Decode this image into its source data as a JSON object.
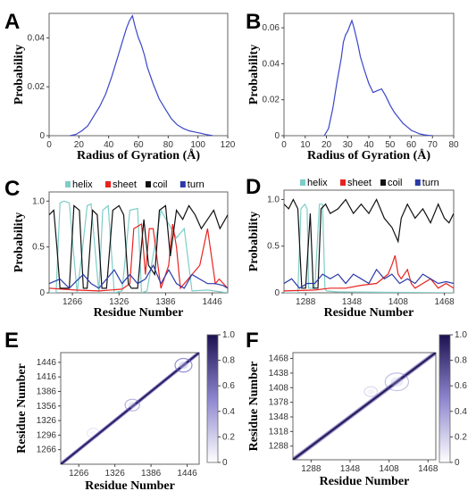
{
  "chart_data": [
    {
      "panel": "A",
      "type": "line",
      "xlabel": "Radius of Gyration (Å)",
      "ylabel": "Probability",
      "xlim": [
        0,
        120
      ],
      "ylim": [
        0,
        0.05
      ],
      "xticks": [
        "0",
        "20",
        "40",
        "60",
        "80",
        "100",
        "120"
      ],
      "yticks": [
        "0",
        "0.02",
        "0.04"
      ],
      "series": [
        {
          "color": "#3a45c8",
          "x": [
            14,
            18,
            22,
            26,
            30,
            34,
            38,
            42,
            46,
            50,
            52,
            54,
            56,
            58,
            60,
            62,
            64,
            66,
            70,
            74,
            78,
            82,
            86,
            90,
            94,
            98,
            102,
            106,
            110
          ],
          "y": [
            0,
            0.0005,
            0.002,
            0.004,
            0.008,
            0.012,
            0.017,
            0.024,
            0.032,
            0.04,
            0.044,
            0.047,
            0.049,
            0.044,
            0.04,
            0.037,
            0.033,
            0.028,
            0.021,
            0.015,
            0.011,
            0.007,
            0.0045,
            0.003,
            0.002,
            0.0015,
            0.001,
            0.0004,
            0
          ]
        }
      ]
    },
    {
      "panel": "B",
      "type": "line",
      "xlabel": "Radius of Gyration (Å)",
      "ylabel": "Probability",
      "xlim": [
        0,
        80
      ],
      "ylim": [
        0,
        0.068
      ],
      "xticks": [
        "0",
        "10",
        "20",
        "30",
        "40",
        "50",
        "60",
        "70",
        "80"
      ],
      "yticks": [
        "0",
        "0.02",
        "0.04",
        "0.06"
      ],
      "series": [
        {
          "color": "#3a45c8",
          "x": [
            19,
            21,
            23,
            25,
            27,
            28,
            29,
            30,
            31,
            32,
            33,
            34,
            35,
            36,
            38,
            40,
            42,
            44,
            46,
            48,
            50,
            52,
            54,
            56,
            58,
            60,
            62,
            64,
            66,
            68,
            70
          ],
          "y": [
            0,
            0.004,
            0.015,
            0.03,
            0.043,
            0.052,
            0.056,
            0.058,
            0.061,
            0.064,
            0.06,
            0.055,
            0.05,
            0.044,
            0.036,
            0.029,
            0.024,
            0.025,
            0.026,
            0.022,
            0.017,
            0.013,
            0.01,
            0.007,
            0.005,
            0.003,
            0.002,
            0.001,
            0.0005,
            0.0002,
            0
          ]
        }
      ]
    },
    {
      "panel": "C",
      "type": "line",
      "xlabel": "Residue Number",
      "ylabel": "Probability",
      "xlim": [
        1236,
        1466
      ],
      "ylim": [
        0,
        1.1
      ],
      "xticks": [
        "1266",
        "1326",
        "1386",
        "1446"
      ],
      "yticks": [
        "0",
        "0.5",
        "1.0"
      ],
      "legend": [
        "helix",
        "sheet",
        "coil",
        "turn"
      ],
      "series": [
        {
          "name": "helix",
          "color": "#7ecdc8",
          "x": [
            1236,
            1245,
            1250,
            1255,
            1262,
            1272,
            1278,
            1285,
            1290,
            1300,
            1305,
            1312,
            1320,
            1330,
            1340,
            1350,
            1355,
            1362,
            1380,
            1400,
            1410,
            1420,
            1440,
            1466
          ],
          "y": [
            0,
            0,
            0.98,
            1.0,
            0.98,
            0,
            0.4,
            0.95,
            0.97,
            0,
            0.9,
            0.95,
            0,
            0.02,
            0.9,
            0.92,
            0,
            0.02,
            0.9,
            0.6,
            0.7,
            0.02,
            0.03,
            0
          ]
        },
        {
          "name": "sheet",
          "color": "#e8231f",
          "x": [
            1236,
            1270,
            1300,
            1330,
            1340,
            1345,
            1355,
            1360,
            1365,
            1370,
            1380,
            1390,
            1395,
            1400,
            1405,
            1410,
            1420,
            1430,
            1440,
            1450,
            1455,
            1466
          ],
          "y": [
            0.05,
            0.03,
            0.02,
            0.04,
            0.1,
            0.7,
            0.75,
            0.2,
            0.7,
            0.7,
            0.05,
            0.3,
            0.75,
            0.5,
            0.05,
            0.1,
            0.2,
            0.3,
            0.7,
            0.1,
            0.15,
            0.05
          ]
        },
        {
          "name": "coil",
          "color": "#111111",
          "x": [
            1236,
            1242,
            1246,
            1250,
            1262,
            1268,
            1275,
            1280,
            1285,
            1292,
            1298,
            1304,
            1310,
            1318,
            1326,
            1332,
            1338,
            1342,
            1350,
            1358,
            1364,
            1372,
            1378,
            1386,
            1392,
            1400,
            1408,
            1416,
            1424,
            1432,
            1440,
            1448,
            1456,
            1466
          ],
          "y": [
            0.85,
            0.9,
            0.5,
            0.05,
            0.05,
            0.95,
            0.9,
            0.05,
            0.05,
            0.9,
            0.85,
            0.05,
            0.05,
            0.9,
            0.95,
            0.85,
            0.1,
            0.05,
            0.05,
            0.8,
            0.3,
            0.2,
            0.9,
            0.95,
            0.4,
            0.9,
            0.8,
            0.95,
            0.85,
            0.7,
            0.8,
            0.9,
            0.7,
            0.85
          ]
        },
        {
          "name": "turn",
          "color": "#2b3aa8",
          "x": [
            1236,
            1250,
            1262,
            1270,
            1280,
            1290,
            1300,
            1310,
            1320,
            1330,
            1340,
            1350,
            1360,
            1370,
            1380,
            1390,
            1400,
            1410,
            1420,
            1430,
            1440,
            1450,
            1460,
            1466
          ],
          "y": [
            0.1,
            0.15,
            0.05,
            0.12,
            0.2,
            0.1,
            0.05,
            0.15,
            0.25,
            0.1,
            0.2,
            0.1,
            0.15,
            0.3,
            0.1,
            0.25,
            0.1,
            0.05,
            0.2,
            0.15,
            0.1,
            0.1,
            0.08,
            0.05
          ]
        }
      ]
    },
    {
      "panel": "D",
      "type": "line",
      "xlabel": "Residue Number",
      "ylabel": "Probability",
      "xlim": [
        1260,
        1480
      ],
      "ylim": [
        0,
        1.1
      ],
      "xticks": [
        "1288",
        "1348",
        "1408",
        "1468"
      ],
      "yticks": [
        "0",
        "0.5",
        "1.0"
      ],
      "legend": [
        "helix",
        "sheet",
        "coil",
        "turn"
      ],
      "series": [
        {
          "name": "helix",
          "color": "#7ecdc8",
          "x": [
            1260,
            1278,
            1282,
            1287,
            1290,
            1292,
            1300,
            1306,
            1310,
            1313,
            1315,
            1330,
            1480
          ],
          "y": [
            0,
            0,
            0.9,
            0.95,
            0.9,
            0.05,
            0.05,
            0.95,
            0.95,
            0.05,
            0.02,
            0.01,
            0
          ]
        },
        {
          "name": "sheet",
          "color": "#e8231f",
          "x": [
            1260,
            1300,
            1320,
            1340,
            1360,
            1380,
            1395,
            1400,
            1404,
            1408,
            1412,
            1420,
            1425,
            1430,
            1440,
            1450,
            1460,
            1470,
            1480
          ],
          "y": [
            0.02,
            0.03,
            0.05,
            0.05,
            0.08,
            0.1,
            0.2,
            0.3,
            0.4,
            0.2,
            0.15,
            0.25,
            0.1,
            0.05,
            0.1,
            0.15,
            0.05,
            0.1,
            0.05
          ]
        },
        {
          "name": "coil",
          "color": "#111111",
          "x": [
            1260,
            1266,
            1272,
            1278,
            1283,
            1288,
            1294,
            1298,
            1304,
            1308,
            1314,
            1320,
            1330,
            1340,
            1350,
            1360,
            1370,
            1380,
            1390,
            1400,
            1408,
            1412,
            1420,
            1430,
            1440,
            1450,
            1460,
            1468,
            1474,
            1480
          ],
          "y": [
            0.95,
            0.9,
            1.0,
            0.9,
            0.05,
            0.05,
            0.85,
            0.05,
            0.05,
            0.9,
            0.95,
            0.85,
            0.9,
            1.0,
            0.85,
            0.95,
            0.85,
            1.0,
            0.8,
            0.7,
            0.55,
            0.8,
            0.95,
            0.8,
            0.9,
            0.75,
            0.95,
            0.8,
            0.75,
            0.85
          ]
        },
        {
          "name": "turn",
          "color": "#2b3aa8",
          "x": [
            1260,
            1270,
            1280,
            1290,
            1300,
            1310,
            1320,
            1330,
            1340,
            1350,
            1360,
            1370,
            1380,
            1390,
            1400,
            1410,
            1420,
            1430,
            1440,
            1450,
            1460,
            1470,
            1480
          ],
          "y": [
            0.1,
            0.15,
            0.05,
            0.1,
            0.1,
            0.2,
            0.15,
            0.2,
            0.1,
            0.2,
            0.15,
            0.1,
            0.25,
            0.15,
            0.2,
            0.1,
            0.15,
            0.1,
            0.2,
            0.15,
            0.1,
            0.12,
            0.1
          ]
        }
      ]
    },
    {
      "panel": "E",
      "type": "heatmap",
      "xlabel": "Residue Number",
      "ylabel": "Residue Number",
      "xlim": [
        1236,
        1466
      ],
      "ylim": [
        1236,
        1466
      ],
      "xticks": [
        "1266",
        "1326",
        "1386",
        "1446"
      ],
      "yticks": [
        "1266",
        "1296",
        "1326",
        "1356",
        "1386",
        "1416",
        "1446"
      ],
      "colorbar": {
        "range": [
          0,
          1.0
        ],
        "ticks": [
          "0",
          "0.2",
          "0.4",
          "0.6",
          "0.8",
          "1.0"
        ],
        "colors": [
          "#ffffff",
          "#1c1150"
        ]
      },
      "features": [
        {
          "kind": "diagonal",
          "from": 1236,
          "to": 1466,
          "value": 0.95
        },
        {
          "kind": "band",
          "offset": 3,
          "from": 1236,
          "to": 1466,
          "value": 0.6
        },
        {
          "kind": "blob",
          "center": [
            1355,
            1358
          ],
          "radius": 12,
          "value": 0.5
        },
        {
          "kind": "blob",
          "center": [
            1440,
            1440
          ],
          "radius": 14,
          "value": 0.7
        },
        {
          "kind": "blob",
          "center": [
            1290,
            1300
          ],
          "radius": 10,
          "value": 0.15
        }
      ]
    },
    {
      "panel": "F",
      "type": "heatmap",
      "xlabel": "Residue Number",
      "ylabel": "Residue Number",
      "xlim": [
        1260,
        1480
      ],
      "ylim": [
        1260,
        1480
      ],
      "xticks": [
        "1288",
        "1348",
        "1408",
        "1468"
      ],
      "yticks": [
        "1288",
        "1318",
        "1348",
        "1378",
        "1408",
        "1438",
        "1468"
      ],
      "colorbar": {
        "range": [
          0,
          1.0
        ],
        "ticks": [
          "0",
          "0.2",
          "0.4",
          "0.6",
          "0.8",
          "1.0"
        ],
        "colors": [
          "#ffffff",
          "#1c1150"
        ]
      },
      "features": [
        {
          "kind": "diagonal",
          "from": 1260,
          "to": 1480,
          "value": 0.95
        },
        {
          "kind": "band",
          "offset": 4,
          "from": 1260,
          "to": 1480,
          "value": 0.55
        },
        {
          "kind": "blob",
          "center": [
            1420,
            1420
          ],
          "radius": 18,
          "value": 0.4
        },
        {
          "kind": "blob",
          "center": [
            1380,
            1400
          ],
          "radius": 10,
          "value": 0.25
        }
      ]
    }
  ]
}
